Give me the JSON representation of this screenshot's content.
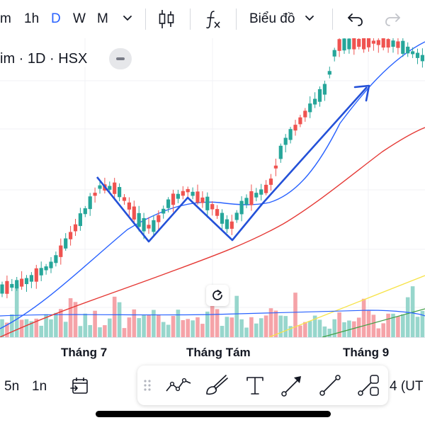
{
  "toolbar": {
    "interval_m": "m",
    "interval_1h": "1h",
    "interval_d": "D",
    "interval_w": "W",
    "interval_mo": "M",
    "chart_type_label": "Biểu đồ",
    "icons": [
      "chevron-down-icon",
      "candlestick-icon",
      "fx-indicator-icon",
      "chevron-down-icon",
      "undo-icon",
      "redo-icon"
    ]
  },
  "symbol": {
    "label": "im · 1D · HSX"
  },
  "chart": {
    "month_labels": [
      "Tháng 7",
      "Tháng Tám",
      "Tháng 9"
    ],
    "colors": {
      "up": "#26a69a",
      "down": "#ef5350",
      "ma_fast": "#2962ff",
      "ma_slow": "#e53935",
      "volume_up": "#97d6cc",
      "volume_down": "#f5a3a8",
      "drawing": "#2451d8",
      "trend_yellow": "#f7e34a",
      "trend_green": "#43a047"
    }
  },
  "chart_data": {
    "type": "candlestick",
    "series": [],
    "x_labels": [
      "Tháng 7",
      "Tháng Tám",
      "Tháng 9"
    ],
    "note_visible": false
  },
  "bottom": {
    "range_5n": "5n",
    "range_1n": "1n",
    "timezone_partial": "4 (UT",
    "tools": [
      "grip-icon",
      "trend-pattern-icon",
      "brush-icon",
      "text-tool-icon",
      "arrow-tool-icon",
      "line-tool-icon",
      "shapes-tool-icon",
      "calendar-goto-icon"
    ]
  }
}
